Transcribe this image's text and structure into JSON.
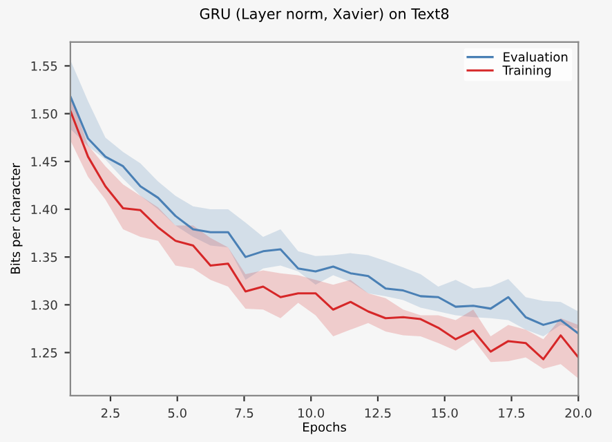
{
  "chart_data": {
    "type": "line",
    "title": "GRU (Layer norm, Xavier) on Text8",
    "xlabel": "Epochs",
    "ylabel": "Bits per character",
    "x": [
      1.0,
      1.66,
      2.31,
      2.97,
      3.62,
      4.28,
      4.93,
      5.59,
      6.24,
      6.9,
      7.55,
      8.21,
      8.86,
      9.52,
      10.17,
      10.83,
      11.48,
      12.14,
      12.79,
      13.45,
      14.1,
      14.76,
      15.41,
      16.07,
      16.72,
      17.38,
      18.03,
      18.69,
      19.34,
      20.0
    ],
    "series": [
      {
        "name": "Evaluation",
        "color": "#4a80b5",
        "values": [
          1.518,
          1.474,
          1.455,
          1.445,
          1.424,
          1.412,
          1.393,
          1.379,
          1.376,
          1.376,
          1.35,
          1.356,
          1.358,
          1.338,
          1.335,
          1.34,
          1.333,
          1.33,
          1.317,
          1.315,
          1.309,
          1.308,
          1.298,
          1.299,
          1.296,
          1.308,
          1.287,
          1.279,
          1.284,
          1.27
        ],
        "upper": [
          1.556,
          1.513,
          1.475,
          1.46,
          1.448,
          1.429,
          1.414,
          1.403,
          1.4,
          1.4,
          1.386,
          1.371,
          1.379,
          1.356,
          1.351,
          1.352,
          1.354,
          1.352,
          1.346,
          1.339,
          1.332,
          1.319,
          1.326,
          1.317,
          1.319,
          1.327,
          1.308,
          1.304,
          1.303,
          1.293
        ],
        "lower": [
          1.484,
          1.466,
          1.452,
          1.432,
          1.414,
          1.4,
          1.383,
          1.371,
          1.362,
          1.36,
          1.326,
          1.338,
          1.341,
          1.335,
          1.321,
          1.331,
          1.324,
          1.312,
          1.309,
          1.305,
          1.297,
          1.293,
          1.289,
          1.287,
          1.286,
          1.284,
          1.274,
          1.267,
          1.279,
          1.275
        ]
      },
      {
        "name": "Training",
        "color": "#d62728",
        "values": [
          1.503,
          1.455,
          1.424,
          1.401,
          1.399,
          1.381,
          1.367,
          1.362,
          1.341,
          1.343,
          1.314,
          1.319,
          1.308,
          1.312,
          1.312,
          1.295,
          1.303,
          1.293,
          1.286,
          1.287,
          1.285,
          1.276,
          1.264,
          1.273,
          1.251,
          1.262,
          1.26,
          1.243,
          1.268,
          1.245
        ],
        "upper": [
          1.52,
          1.467,
          1.445,
          1.426,
          1.414,
          1.402,
          1.383,
          1.383,
          1.37,
          1.36,
          1.332,
          1.336,
          1.333,
          1.331,
          1.326,
          1.321,
          1.326,
          1.312,
          1.307,
          1.295,
          1.289,
          1.289,
          1.284,
          1.295,
          1.267,
          1.279,
          1.274,
          1.264,
          1.286,
          1.279
        ],
        "lower": [
          1.472,
          1.434,
          1.41,
          1.379,
          1.371,
          1.367,
          1.341,
          1.338,
          1.326,
          1.319,
          1.296,
          1.295,
          1.286,
          1.302,
          1.289,
          1.267,
          1.274,
          1.281,
          1.272,
          1.268,
          1.267,
          1.26,
          1.252,
          1.264,
          1.24,
          1.241,
          1.245,
          1.233,
          1.238,
          1.223
        ]
      }
    ],
    "xlim": [
      1,
      20
    ],
    "ylim": [
      1.205,
      1.575
    ],
    "xticks": [
      2.5,
      {
        "value": 5,
        "label": "5.0"
      },
      7.5,
      {
        "value": 10,
        "label": "10.0"
      },
      12.5,
      {
        "value": 15,
        "label": "15.0"
      },
      17.5,
      {
        "value": 20,
        "label": "20.0"
      }
    ],
    "yticks": [
      1.25,
      {
        "value": 1.3,
        "label": "1.30"
      },
      1.35,
      {
        "value": 1.4,
        "label": "1.40"
      },
      1.45,
      {
        "value": 1.5,
        "label": "1.50"
      },
      1.55
    ],
    "legend": "top right",
    "grid": false
  }
}
